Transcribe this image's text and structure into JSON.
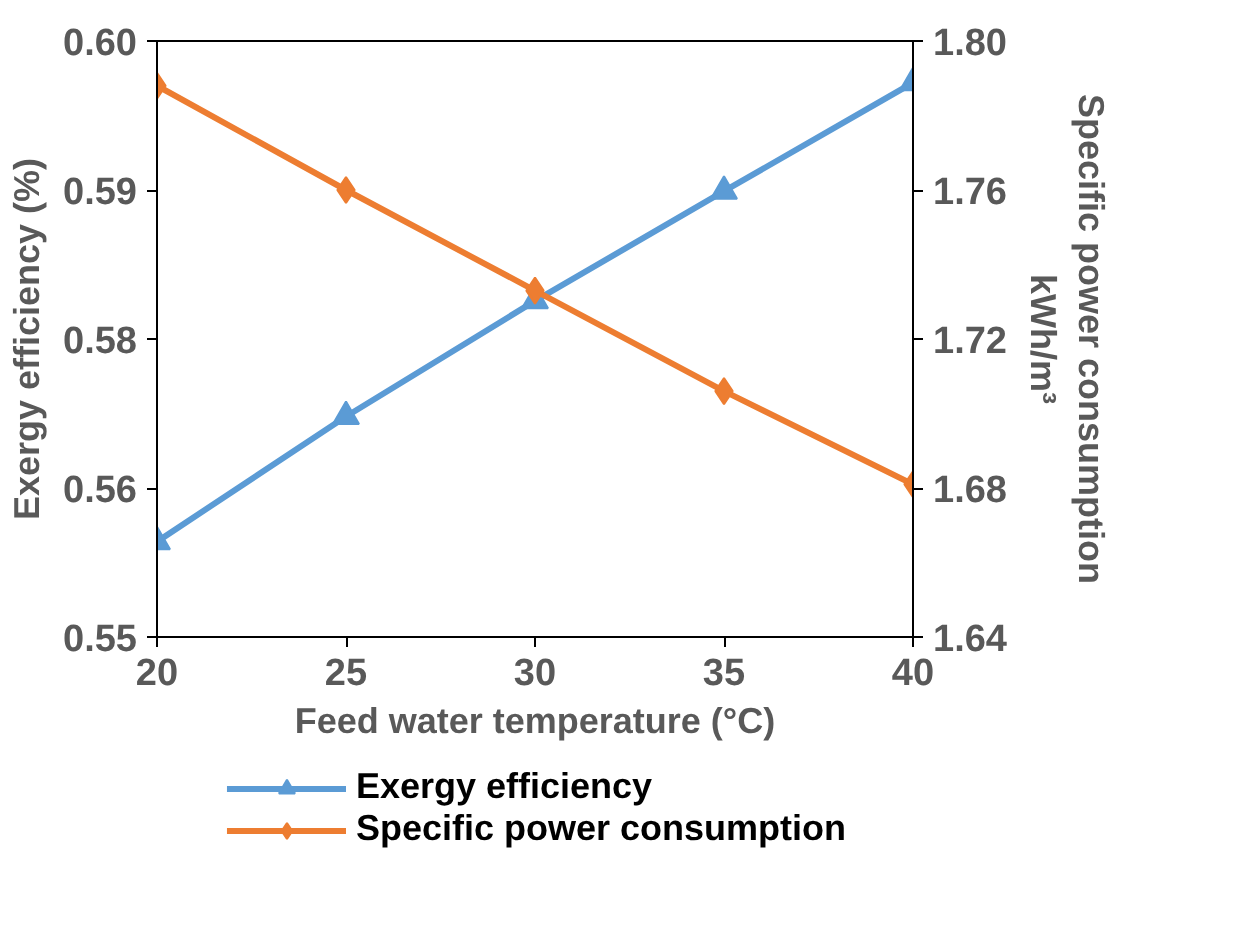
{
  "chart_data": {
    "type": "line",
    "xlabel": "Feed water temperature (°C)",
    "ylabel": "Exergy efficiency (%)",
    "y2label": "Specific power consumption\nkWh/m³",
    "x": [
      20,
      25,
      30,
      35,
      40
    ],
    "series": [
      {
        "name": "Exergy efficiency",
        "color": "#5b9bd5",
        "marker": "triangle",
        "values": [
          0.558,
          0.5685,
          0.5782,
          0.5874,
          0.5965
        ]
      },
      {
        "name": "Specific power consumption",
        "color": "#ed7d31",
        "marker": "diamond",
        "axis": "y2",
        "values": [
          1.788,
          1.76,
          1.733,
          1.706,
          1.681
        ]
      }
    ],
    "xlim": [
      20,
      40
    ],
    "xticks": [
      20,
      25,
      30,
      35,
      40
    ],
    "ylim": [
      0.55,
      0.6
    ],
    "yticks": [
      0.55,
      {
        "value": 0.5625,
        "label": "0.56"
      },
      {
        "value": 0.575,
        "label": "0.58"
      },
      {
        "value": 0.5875,
        "label": "0.59"
      },
      {
        "value": 0.6,
        "label": "0.60"
      }
    ],
    "y2lim": [
      1.64,
      1.8
    ],
    "y2ticks": [
      {
        "value": 1.64,
        "label": "1.64"
      },
      {
        "value": 1.68,
        "label": "1.68"
      },
      {
        "value": 1.72,
        "label": "1.72"
      },
      {
        "value": 1.76,
        "label": "1.76"
      },
      {
        "value": 1.8,
        "label": "1.80"
      }
    ],
    "grid": false,
    "legend": "bottom",
    "line_style": "solid"
  }
}
